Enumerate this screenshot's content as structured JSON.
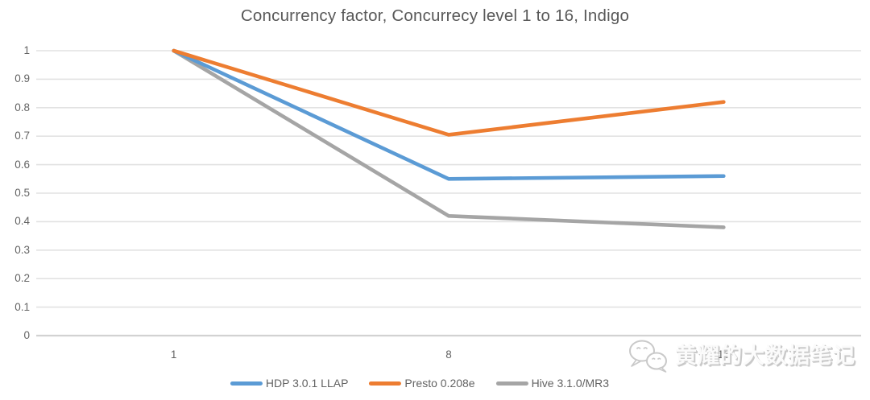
{
  "chart_data": {
    "type": "line",
    "title": "Concurrency factor, Concurrecy level 1 to 16, Indigo",
    "categories": [
      "1",
      "8",
      "16"
    ],
    "series": [
      {
        "name": "HDP 3.0.1 LLAP",
        "color": "#5B9BD5",
        "values": [
          1,
          0.55,
          0.56
        ]
      },
      {
        "name": "Presto 0.208e",
        "color": "#ED7D31",
        "values": [
          1,
          0.705,
          0.82
        ]
      },
      {
        "name": "Hive 3.1.0/MR3",
        "color": "#A5A5A5",
        "values": [
          1,
          0.42,
          0.38
        ]
      }
    ],
    "xlabel": "",
    "ylabel": "",
    "ylim": [
      0,
      1
    ],
    "yticks": [
      {
        "label": "1",
        "value": 1.0
      },
      {
        "label": "0.9",
        "value": 0.9
      },
      {
        "label": "0.8",
        "value": 0.8
      },
      {
        "label": "0.7",
        "value": 0.7
      },
      {
        "label": "0.6",
        "value": 0.6
      },
      {
        "label": "0.5",
        "value": 0.5
      },
      {
        "label": "0.4",
        "value": 0.4
      },
      {
        "label": "0.3",
        "value": 0.3
      },
      {
        "label": "0.2",
        "value": 0.2
      },
      {
        "label": "0.1",
        "value": 0.1
      },
      {
        "label": "0",
        "value": 0.0
      }
    ],
    "grid": true,
    "legend_position": "bottom"
  },
  "colors": {
    "title_text": "#595959",
    "tick_text": "#636363",
    "grid": "#E2E2E2",
    "axis": "#D2D2D2",
    "watermark": "#C9C9C9"
  },
  "watermark": {
    "text": "黄耀的大数据笔记",
    "icon": "wechat-icon"
  }
}
